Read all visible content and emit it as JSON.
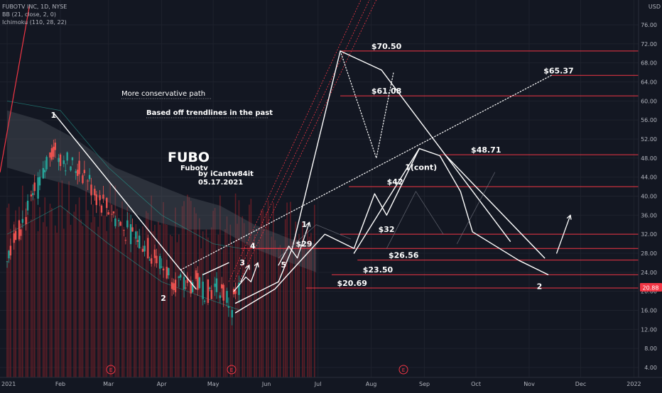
{
  "header": {
    "symbol_line": "FUBOTV INC, 1D, NYSE",
    "bb_line": "BB (21, close, 2, 0)",
    "ichimoku_line": "Ichimoku (110, 28, 22)"
  },
  "axis": {
    "currency": "USD",
    "current_price": "20.88"
  },
  "annotations": {
    "title": "FUBO",
    "subtitle": "Fubotv",
    "author": "by iCantw84it",
    "date": "05.17.2021",
    "conservative_path": "More conservative path",
    "trendline_note": "Based off trendlines in the past"
  },
  "colors": {
    "background": "#131722",
    "level_line": "#f23645",
    "volume_bar": "#6b1f27",
    "bull_candle": "#26a69a",
    "bear_candle": "#ef5350",
    "cloud": "#5d606b",
    "price_label_bg": "#f23645",
    "annotation": "#ffffff"
  },
  "chart_data": {
    "type": "line",
    "title": "FUBOTV INC, 1D, NYSE",
    "ylabel": "USD",
    "y_scale": "linear",
    "ylim": [
      2,
      78
    ],
    "xlim": [
      "2021-01-01",
      "2022-01-20"
    ],
    "grid": true,
    "x_ticks": [
      {
        "label": "2021",
        "date": "2021-01-01"
      },
      {
        "label": "Feb",
        "date": "2021-02-01"
      },
      {
        "label": "Mar",
        "date": "2021-03-01"
      },
      {
        "label": "Apr",
        "date": "2021-04-01"
      },
      {
        "label": "May",
        "date": "2021-05-01"
      },
      {
        "label": "Jun",
        "date": "2021-06-01"
      },
      {
        "label": "Jul",
        "date": "2021-07-01"
      },
      {
        "label": "Aug",
        "date": "2021-08-01"
      },
      {
        "label": "Sep",
        "date": "2021-09-01"
      },
      {
        "label": "Oct",
        "date": "2021-10-01"
      },
      {
        "label": "Nov",
        "date": "2021-11-01"
      },
      {
        "label": "Dec",
        "date": "2021-12-01"
      },
      {
        "label": "2022",
        "date": "2022-01-01"
      }
    ],
    "y_ticks": [
      "4.00",
      "8.00",
      "12.00",
      "16.00",
      "20.00",
      "24.00",
      "28.00",
      "32.00",
      "36.00",
      "40.00",
      "44.00",
      "48.00",
      "52.00",
      "56.00",
      "60.00",
      "64.00",
      "68.00",
      "72.00",
      "76.00"
    ],
    "levels": [
      {
        "label": "$70.50",
        "value": 70.5,
        "from": "2021-07-14",
        "to": "2022-01-20"
      },
      {
        "label": "$65.37",
        "value": 65.37,
        "from": "2021-11-14",
        "to": "2022-01-20"
      },
      {
        "label": "$61.08",
        "value": 61.08,
        "from": "2021-07-14",
        "to": "2022-01-20"
      },
      {
        "label": "$48.71",
        "value": 48.71,
        "from": "2021-09-10",
        "to": "2022-01-20"
      },
      {
        "label": "$42",
        "value": 42.0,
        "from": "2021-07-19",
        "to": "2022-01-20"
      },
      {
        "label": "$32",
        "value": 32.0,
        "from": "2021-07-14",
        "to": "2022-01-20"
      },
      {
        "label": "$29",
        "value": 29.0,
        "from": "2021-05-27",
        "to": "2022-01-20"
      },
      {
        "label": "$26.56",
        "value": 26.56,
        "from": "2021-07-24",
        "to": "2022-01-20"
      },
      {
        "label": "$23.50",
        "value": 23.5,
        "from": "2021-07-09",
        "to": "2022-01-20"
      },
      {
        "label": "$20.69",
        "value": 20.69,
        "from": "2021-06-24",
        "to": "2022-01-20"
      }
    ],
    "wave_labels": [
      {
        "label": "1",
        "date": "2021-01-28",
        "value": 56.5
      },
      {
        "label": "2",
        "date": "2021-04-02",
        "value": 18.0
      },
      {
        "label": "3",
        "date": "2021-05-18",
        "value": 25.5
      },
      {
        "label": "4",
        "date": "2021-05-24",
        "value": 29.0
      },
      {
        "label": "5",
        "date": "2021-06-11",
        "value": 25.0
      },
      {
        "label": "1",
        "date": "2021-06-23",
        "value": 33.5
      },
      {
        "label": "1(cont)",
        "date": "2021-08-30",
        "value": 45.5
      },
      {
        "label": "2",
        "date": "2021-11-07",
        "value": 20.5
      }
    ],
    "series": [
      {
        "style": "price",
        "points": [
          {
            "x": "2021-01-01",
            "y": 28
          },
          {
            "x": "2021-01-08",
            "y": 33
          },
          {
            "x": "2021-01-15",
            "y": 38
          },
          {
            "x": "2021-01-22",
            "y": 44
          },
          {
            "x": "2021-01-27",
            "y": 50
          },
          {
            "x": "2021-02-03",
            "y": 48
          },
          {
            "x": "2021-02-10",
            "y": 46
          },
          {
            "x": "2021-02-17",
            "y": 44
          },
          {
            "x": "2021-02-24",
            "y": 39
          },
          {
            "x": "2021-03-03",
            "y": 37
          },
          {
            "x": "2021-03-10",
            "y": 33
          },
          {
            "x": "2021-03-17",
            "y": 32
          },
          {
            "x": "2021-03-24",
            "y": 29
          },
          {
            "x": "2021-03-31",
            "y": 26
          },
          {
            "x": "2021-04-07",
            "y": 23
          },
          {
            "x": "2021-04-14",
            "y": 21
          },
          {
            "x": "2021-04-21",
            "y": 22
          },
          {
            "x": "2021-04-28",
            "y": 20
          },
          {
            "x": "2021-05-05",
            "y": 21
          },
          {
            "x": "2021-05-12",
            "y": 17
          },
          {
            "x": "2021-05-17",
            "y": 20.88
          }
        ]
      },
      {
        "style": "solid",
        "points": [
          {
            "x": "2021-01-28",
            "y": 57.5
          },
          {
            "x": "2021-04-21",
            "y": 20.5
          }
        ]
      },
      {
        "style": "solid",
        "points": [
          {
            "x": "2021-04-25",
            "y": 23.5
          },
          {
            "x": "2021-05-10",
            "y": 26
          }
        ]
      },
      {
        "style": "solid",
        "points": [
          {
            "x": "2021-05-14",
            "y": 17.5
          },
          {
            "x": "2021-06-08",
            "y": 22
          },
          {
            "x": "2021-06-16",
            "y": 29
          },
          {
            "x": "2021-07-14",
            "y": 70.5
          },
          {
            "x": "2021-08-07",
            "y": 66.5
          },
          {
            "x": "2021-10-21",
            "y": 30.5
          }
        ]
      },
      {
        "style": "solid",
        "points": [
          {
            "x": "2021-05-14",
            "y": 15.5
          },
          {
            "x": "2021-06-06",
            "y": 20.5
          },
          {
            "x": "2021-06-16",
            "y": 24.5
          },
          {
            "x": "2021-07-05",
            "y": 32
          },
          {
            "x": "2021-07-22",
            "y": 29
          },
          {
            "x": "2021-08-03",
            "y": 40.5
          },
          {
            "x": "2021-08-10",
            "y": 36
          },
          {
            "x": "2021-08-29",
            "y": 50
          },
          {
            "x": "2021-09-10",
            "y": 48.5
          },
          {
            "x": "2021-09-22",
            "y": 41
          },
          {
            "x": "2021-09-29",
            "y": 32.5
          },
          {
            "x": "2021-10-26",
            "y": 26.5
          },
          {
            "x": "2021-11-12",
            "y": 23.5
          }
        ]
      },
      {
        "style": "solid",
        "points": [
          {
            "x": "2021-07-22",
            "y": 28
          },
          {
            "x": "2021-08-29",
            "y": 50
          }
        ]
      },
      {
        "style": "solid",
        "points": [
          {
            "x": "2021-09-13",
            "y": 48.7
          },
          {
            "x": "2021-11-10",
            "y": 27
          }
        ]
      },
      {
        "style": "dotted",
        "points": [
          {
            "x": "2021-04-12",
            "y": 24.5
          },
          {
            "x": "2021-11-14",
            "y": 65.4
          }
        ]
      },
      {
        "style": "dotted",
        "points": [
          {
            "x": "2021-07-14",
            "y": 70.5
          },
          {
            "x": "2021-08-04",
            "y": 48
          },
          {
            "x": "2021-08-14",
            "y": 66
          }
        ]
      }
    ]
  }
}
